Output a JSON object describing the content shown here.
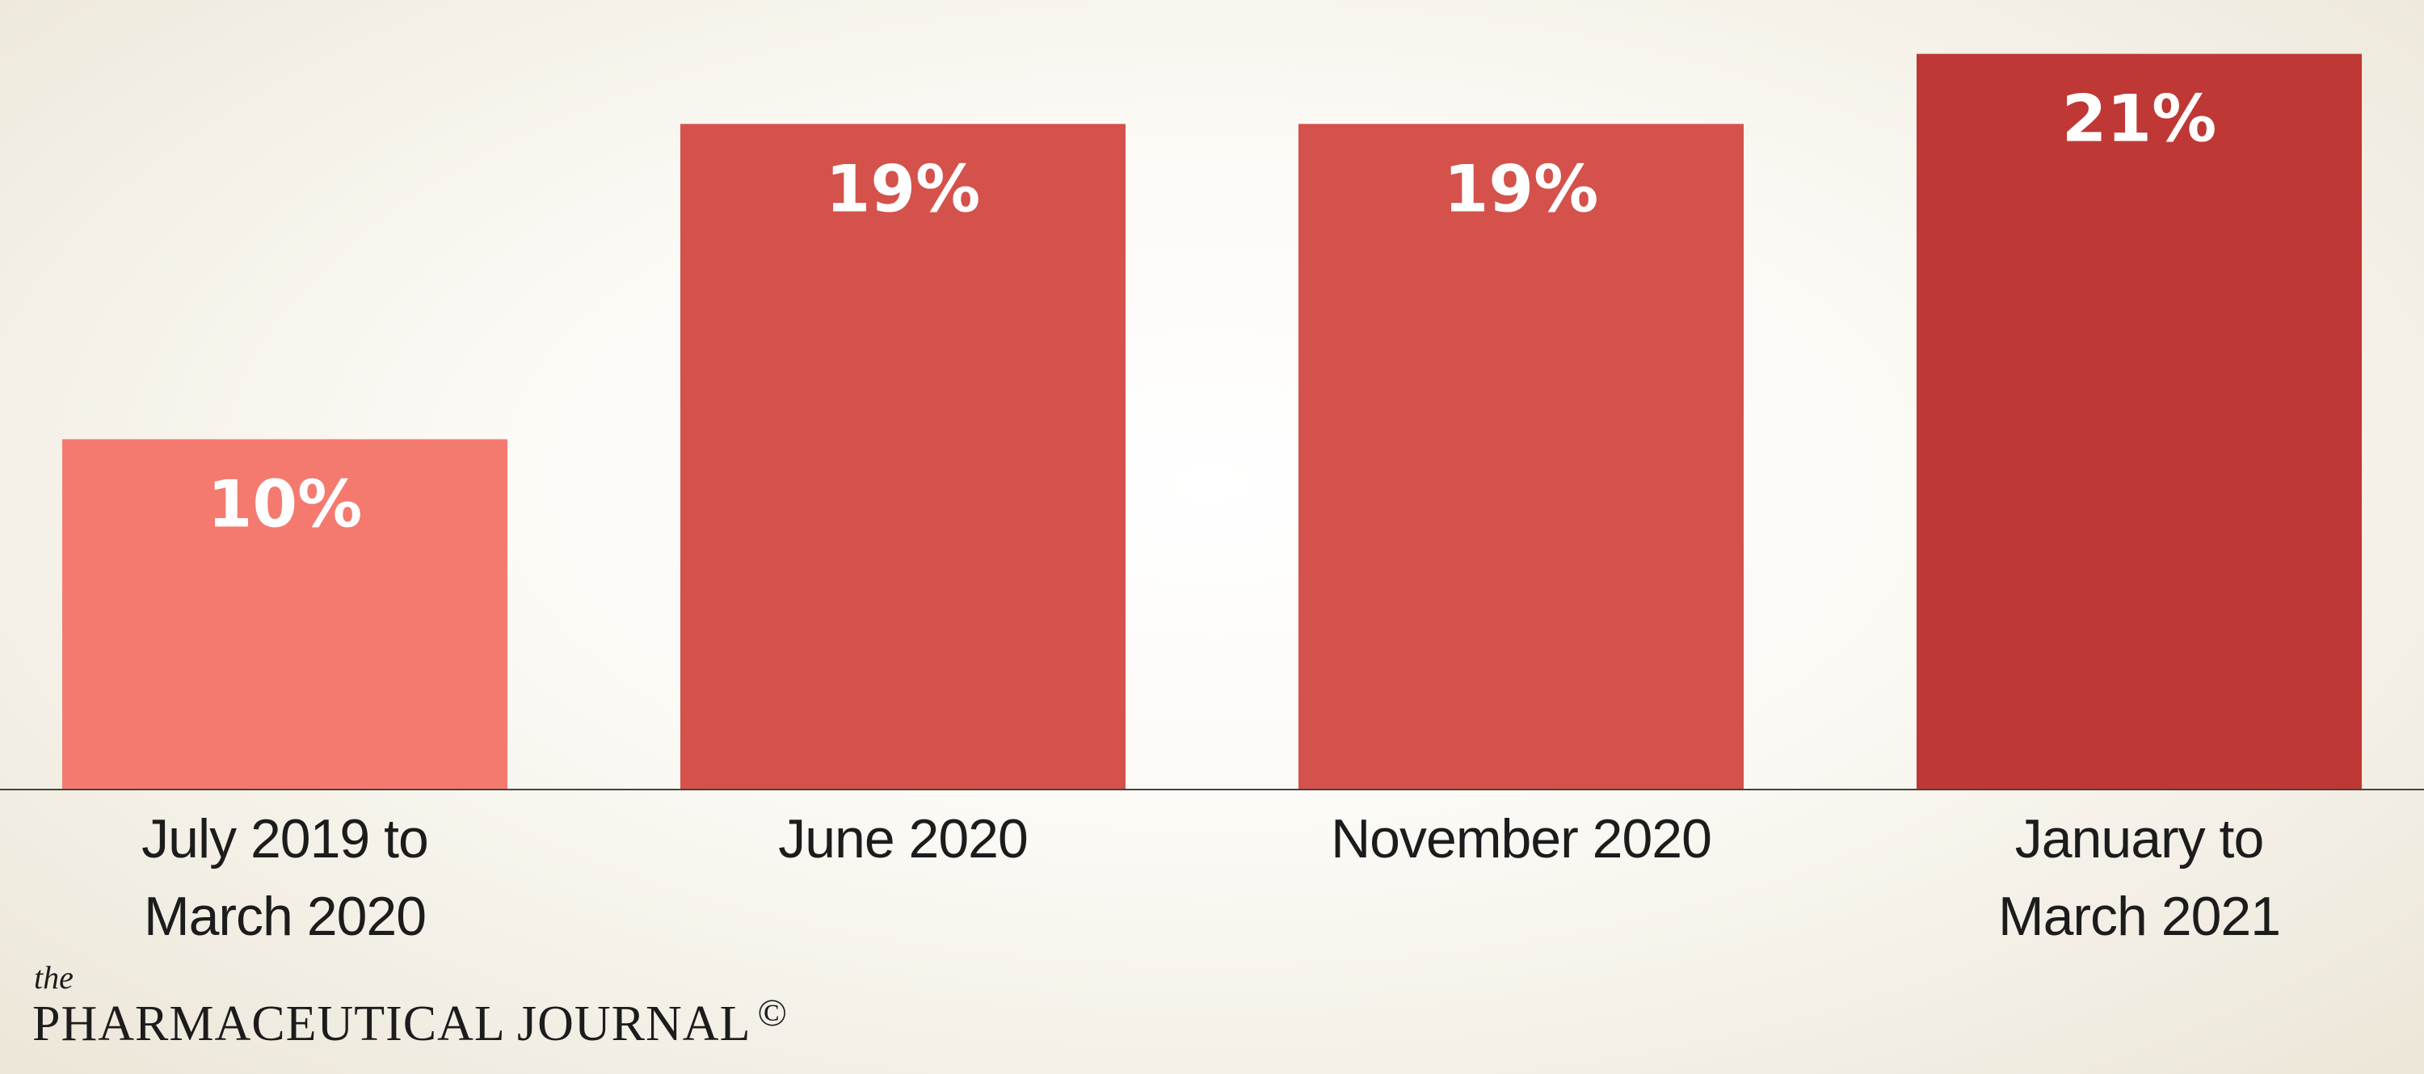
{
  "chart_data": {
    "type": "bar",
    "categories": [
      "July 2019 to\nMarch 2020",
      "June 2020",
      "November 2020",
      "January to\nMarch 2021"
    ],
    "values": [
      10,
      19,
      19,
      21
    ],
    "value_labels": [
      "10%",
      "19%",
      "19%",
      "21%"
    ],
    "colors": [
      "#f47a70",
      "#d4524b",
      "#d4524b",
      "#bf3835"
    ]
  },
  "logo": {
    "prefix": "the",
    "name": "PHARMACEUTICAL JOURNAL",
    "mark": "©"
  }
}
